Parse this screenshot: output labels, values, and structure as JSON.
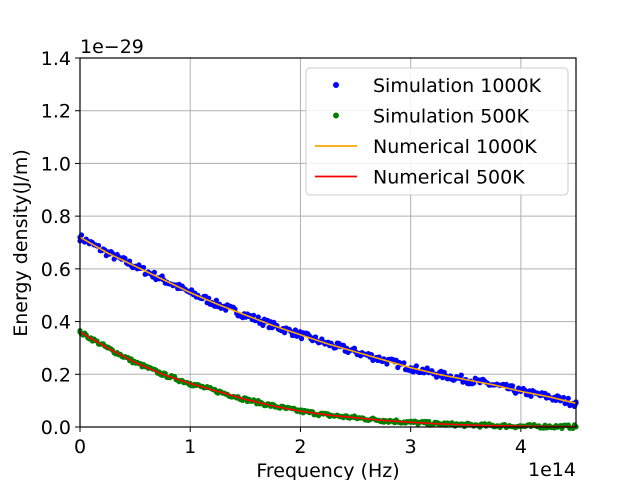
{
  "chart_data": {
    "type": "line",
    "xlabel": "Frequency (Hz)",
    "ylabel": "Energy density(J/m)",
    "x_offset_label": "1e14",
    "y_offset_label": "1e−29",
    "xlim": [
      0,
      4.5
    ],
    "ylim": [
      0,
      1.4
    ],
    "x_ticks": [
      0,
      1,
      2,
      3,
      4
    ],
    "x_tick_labels": [
      "0",
      "1",
      "2",
      "3",
      "4"
    ],
    "y_ticks": [
      0.0,
      0.2,
      0.4,
      0.6,
      0.8,
      1.0,
      1.2,
      1.4
    ],
    "y_tick_labels": [
      "0.0",
      "0.2",
      "0.4",
      "0.6",
      "0.8",
      "1.0",
      "1.2",
      "1.4"
    ],
    "grid": true,
    "legend_position": "top-right",
    "x": [
      0,
      0.25,
      0.5,
      0.75,
      1.0,
      1.25,
      1.5,
      1.75,
      2.0,
      2.25,
      2.5,
      2.75,
      3.0,
      3.25,
      3.5,
      3.75,
      4.0,
      4.25,
      4.5
    ],
    "series": [
      {
        "name": "Simulation 1000K",
        "kind": "scatter",
        "color": "#0000ff",
        "values": [
          0.72,
          0.66,
          0.61,
          0.56,
          0.51,
          0.465,
          0.425,
          0.385,
          0.35,
          0.315,
          0.285,
          0.255,
          0.225,
          0.2,
          0.18,
          0.16,
          0.135,
          0.115,
          0.09
        ]
      },
      {
        "name": "Simulation 500K",
        "kind": "scatter",
        "color": "#008000",
        "values": [
          0.36,
          0.3,
          0.245,
          0.2,
          0.165,
          0.135,
          0.105,
          0.08,
          0.06,
          0.045,
          0.035,
          0.025,
          0.018,
          0.012,
          0.008,
          0.005,
          0.003,
          0.002,
          0.001
        ]
      },
      {
        "name": "Numerical 1000K",
        "kind": "line",
        "color": "#ffa500",
        "values": [
          0.72,
          0.66,
          0.61,
          0.56,
          0.51,
          0.465,
          0.425,
          0.385,
          0.35,
          0.315,
          0.285,
          0.255,
          0.225,
          0.2,
          0.18,
          0.16,
          0.135,
          0.115,
          0.09
        ]
      },
      {
        "name": "Numerical 500K",
        "kind": "line",
        "color": "#ff0000",
        "values": [
          0.36,
          0.3,
          0.245,
          0.2,
          0.165,
          0.135,
          0.105,
          0.08,
          0.06,
          0.045,
          0.035,
          0.025,
          0.018,
          0.012,
          0.008,
          0.005,
          0.003,
          0.002,
          0.001
        ]
      }
    ]
  }
}
